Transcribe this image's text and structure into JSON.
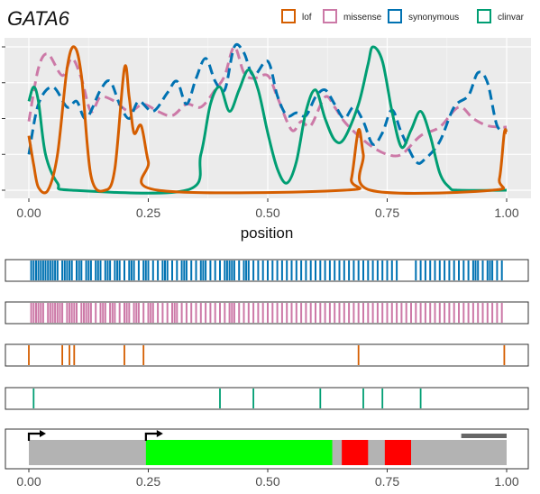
{
  "chart_data": [
    {
      "type": "line",
      "title": "GATA6",
      "xlabel": "position",
      "ylabel": "",
      "xlim": [
        0,
        1
      ],
      "ylim": [
        0,
        1
      ],
      "x_ticks": [
        "0.00",
        "0.25",
        "0.50",
        "0.75",
        "1.00"
      ],
      "grid": true,
      "legend_position": "top-right",
      "series": [
        {
          "name": "lof",
          "color": "#D55E00",
          "style": "solid",
          "points": [
            [
              0.0,
              0.38
            ],
            [
              0.01,
              0.18
            ],
            [
              0.02,
              0.02
            ],
            [
              0.04,
              0.0
            ],
            [
              0.06,
              0.25
            ],
            [
              0.08,
              0.85
            ],
            [
              0.095,
              1.0
            ],
            [
              0.11,
              0.8
            ],
            [
              0.13,
              0.1
            ],
            [
              0.16,
              0.0
            ],
            [
              0.18,
              0.15
            ],
            [
              0.2,
              0.85
            ],
            [
              0.21,
              0.65
            ],
            [
              0.22,
              0.4
            ],
            [
              0.235,
              0.45
            ],
            [
              0.25,
              0.2
            ],
            [
              0.27,
              0.0
            ],
            [
              0.66,
              0.0
            ],
            [
              0.675,
              0.08
            ],
            [
              0.69,
              0.42
            ],
            [
              0.7,
              0.25
            ],
            [
              0.715,
              0.0
            ],
            [
              0.97,
              0.0
            ],
            [
              0.985,
              0.08
            ],
            [
              0.995,
              0.4
            ],
            [
              1.0,
              0.4
            ]
          ]
        },
        {
          "name": "missense",
          "color": "#CC79A7",
          "style": "dashed",
          "points": [
            [
              0.0,
              0.48
            ],
            [
              0.02,
              0.85
            ],
            [
              0.04,
              0.95
            ],
            [
              0.07,
              0.8
            ],
            [
              0.09,
              0.92
            ],
            [
              0.11,
              0.78
            ],
            [
              0.13,
              0.55
            ],
            [
              0.15,
              0.65
            ],
            [
              0.18,
              0.62
            ],
            [
              0.21,
              0.55
            ],
            [
              0.24,
              0.6
            ],
            [
              0.27,
              0.55
            ],
            [
              0.3,
              0.52
            ],
            [
              0.33,
              0.6
            ],
            [
              0.36,
              0.58
            ],
            [
              0.39,
              0.7
            ],
            [
              0.41,
              0.8
            ],
            [
              0.43,
              1.0
            ],
            [
              0.45,
              0.82
            ],
            [
              0.47,
              0.78
            ],
            [
              0.5,
              0.8
            ],
            [
              0.52,
              0.65
            ],
            [
              0.55,
              0.42
            ],
            [
              0.57,
              0.48
            ],
            [
              0.59,
              0.45
            ],
            [
              0.62,
              0.65
            ],
            [
              0.64,
              0.58
            ],
            [
              0.66,
              0.48
            ],
            [
              0.69,
              0.38
            ],
            [
              0.72,
              0.3
            ],
            [
              0.75,
              0.25
            ],
            [
              0.78,
              0.25
            ],
            [
              0.82,
              0.38
            ],
            [
              0.86,
              0.44
            ],
            [
              0.9,
              0.58
            ],
            [
              0.93,
              0.5
            ],
            [
              0.96,
              0.45
            ],
            [
              0.99,
              0.44
            ],
            [
              1.0,
              0.44
            ]
          ]
        },
        {
          "name": "synonymous",
          "color": "#0072B2",
          "style": "dashed",
          "points": [
            [
              0.0,
              0.25
            ],
            [
              0.02,
              0.6
            ],
            [
              0.05,
              0.72
            ],
            [
              0.08,
              0.58
            ],
            [
              0.1,
              0.62
            ],
            [
              0.12,
              0.5
            ],
            [
              0.15,
              0.7
            ],
            [
              0.17,
              0.76
            ],
            [
              0.19,
              0.6
            ],
            [
              0.21,
              0.5
            ],
            [
              0.23,
              0.62
            ],
            [
              0.26,
              0.55
            ],
            [
              0.29,
              0.68
            ],
            [
              0.31,
              0.76
            ],
            [
              0.33,
              0.6
            ],
            [
              0.35,
              0.78
            ],
            [
              0.37,
              0.92
            ],
            [
              0.39,
              0.76
            ],
            [
              0.41,
              0.7
            ],
            [
              0.43,
              1.0
            ],
            [
              0.45,
              0.96
            ],
            [
              0.47,
              0.8
            ],
            [
              0.5,
              0.9
            ],
            [
              0.52,
              0.66
            ],
            [
              0.54,
              0.52
            ],
            [
              0.56,
              0.54
            ],
            [
              0.58,
              0.52
            ],
            [
              0.6,
              0.65
            ],
            [
              0.62,
              0.7
            ],
            [
              0.64,
              0.6
            ],
            [
              0.66,
              0.5
            ],
            [
              0.68,
              0.58
            ],
            [
              0.7,
              0.48
            ],
            [
              0.72,
              0.32
            ],
            [
              0.74,
              0.4
            ],
            [
              0.76,
              0.56
            ],
            [
              0.78,
              0.4
            ],
            [
              0.81,
              0.2
            ],
            [
              0.83,
              0.22
            ],
            [
              0.86,
              0.34
            ],
            [
              0.89,
              0.58
            ],
            [
              0.92,
              0.66
            ],
            [
              0.94,
              0.82
            ],
            [
              0.96,
              0.75
            ],
            [
              0.98,
              0.45
            ],
            [
              1.0,
              0.42
            ]
          ]
        },
        {
          "name": "clinvar",
          "color": "#009E73",
          "style": "solid",
          "points": [
            [
              0.0,
              0.62
            ],
            [
              0.01,
              0.72
            ],
            [
              0.02,
              0.62
            ],
            [
              0.035,
              0.25
            ],
            [
              0.06,
              0.05
            ],
            [
              0.09,
              0.0
            ],
            [
              0.33,
              0.0
            ],
            [
              0.36,
              0.25
            ],
            [
              0.38,
              0.6
            ],
            [
              0.4,
              0.72
            ],
            [
              0.42,
              0.55
            ],
            [
              0.44,
              0.7
            ],
            [
              0.46,
              0.84
            ],
            [
              0.48,
              0.7
            ],
            [
              0.5,
              0.4
            ],
            [
              0.52,
              0.15
            ],
            [
              0.54,
              0.05
            ],
            [
              0.56,
              0.2
            ],
            [
              0.58,
              0.55
            ],
            [
              0.6,
              0.7
            ],
            [
              0.62,
              0.5
            ],
            [
              0.64,
              0.35
            ],
            [
              0.66,
              0.36
            ],
            [
              0.69,
              0.6
            ],
            [
              0.71,
              0.88
            ],
            [
              0.72,
              1.0
            ],
            [
              0.74,
              0.9
            ],
            [
              0.76,
              0.55
            ],
            [
              0.78,
              0.3
            ],
            [
              0.8,
              0.42
            ],
            [
              0.82,
              0.55
            ],
            [
              0.84,
              0.38
            ],
            [
              0.86,
              0.12
            ],
            [
              0.88,
              0.02
            ],
            [
              0.9,
              0.0
            ],
            [
              1.0,
              0.0
            ]
          ]
        }
      ]
    },
    {
      "type": "rug",
      "series": [
        {
          "name": "synonymous",
          "color": "#0072B2",
          "positions": [
            0.005,
            0.01,
            0.015,
            0.02,
            0.025,
            0.03,
            0.035,
            0.04,
            0.045,
            0.05,
            0.055,
            0.06,
            0.07,
            0.075,
            0.08,
            0.085,
            0.09,
            0.1,
            0.105,
            0.11,
            0.12,
            0.125,
            0.13,
            0.14,
            0.145,
            0.15,
            0.16,
            0.165,
            0.17,
            0.18,
            0.185,
            0.19,
            0.2,
            0.21,
            0.215,
            0.22,
            0.23,
            0.24,
            0.245,
            0.25,
            0.26,
            0.27,
            0.28,
            0.285,
            0.29,
            0.3,
            0.31,
            0.32,
            0.325,
            0.33,
            0.34,
            0.35,
            0.36,
            0.365,
            0.37,
            0.38,
            0.39,
            0.4,
            0.41,
            0.415,
            0.42,
            0.425,
            0.43,
            0.44,
            0.45,
            0.455,
            0.46,
            0.47,
            0.48,
            0.49,
            0.5,
            0.51,
            0.52,
            0.53,
            0.54,
            0.55,
            0.56,
            0.57,
            0.58,
            0.59,
            0.6,
            0.61,
            0.62,
            0.63,
            0.64,
            0.65,
            0.66,
            0.67,
            0.68,
            0.69,
            0.7,
            0.71,
            0.72,
            0.73,
            0.74,
            0.75,
            0.76,
            0.77,
            0.81,
            0.82,
            0.83,
            0.84,
            0.85,
            0.86,
            0.87,
            0.88,
            0.89,
            0.9,
            0.91,
            0.92,
            0.93,
            0.935,
            0.94,
            0.95,
            0.96,
            0.965,
            0.97,
            0.98,
            0.99
          ]
        },
        {
          "name": "missense",
          "color": "#CC79A7",
          "positions": [
            0.005,
            0.01,
            0.015,
            0.02,
            0.025,
            0.03,
            0.04,
            0.045,
            0.05,
            0.055,
            0.06,
            0.065,
            0.07,
            0.08,
            0.085,
            0.09,
            0.095,
            0.1,
            0.11,
            0.115,
            0.12,
            0.125,
            0.13,
            0.14,
            0.15,
            0.155,
            0.16,
            0.17,
            0.175,
            0.18,
            0.19,
            0.2,
            0.205,
            0.21,
            0.22,
            0.225,
            0.23,
            0.24,
            0.25,
            0.255,
            0.26,
            0.27,
            0.28,
            0.29,
            0.3,
            0.305,
            0.31,
            0.32,
            0.33,
            0.34,
            0.35,
            0.36,
            0.37,
            0.38,
            0.39,
            0.4,
            0.41,
            0.42,
            0.425,
            0.43,
            0.44,
            0.45,
            0.46,
            0.47,
            0.48,
            0.49,
            0.5,
            0.51,
            0.52,
            0.53,
            0.54,
            0.55,
            0.56,
            0.57,
            0.58,
            0.59,
            0.6,
            0.61,
            0.62,
            0.63,
            0.64,
            0.65,
            0.66,
            0.67,
            0.68,
            0.69,
            0.7,
            0.71,
            0.72,
            0.73,
            0.74,
            0.75,
            0.76,
            0.77,
            0.78,
            0.79,
            0.8,
            0.81,
            0.82,
            0.83,
            0.84,
            0.85,
            0.86,
            0.87,
            0.88,
            0.89,
            0.9,
            0.91,
            0.92,
            0.93,
            0.94,
            0.95,
            0.96,
            0.97,
            0.98,
            0.99
          ]
        },
        {
          "name": "lof",
          "color": "#D55E00",
          "positions": [
            0.0,
            0.07,
            0.085,
            0.095,
            0.2,
            0.24,
            0.69,
            0.995
          ]
        },
        {
          "name": "clinvar",
          "color": "#009E73",
          "positions": [
            0.01,
            0.4,
            0.47,
            0.61,
            0.7,
            0.74,
            0.82
          ]
        }
      ]
    },
    {
      "type": "gene-track",
      "x_ticks": [
        "0.00",
        "0.25",
        "0.50",
        "0.75",
        "1.00"
      ],
      "backbone_color": "#B3B3B3",
      "regions": [
        {
          "start": 0.245,
          "end": 0.635,
          "color": "#00FF00"
        },
        {
          "start": 0.655,
          "end": 0.71,
          "color": "#FF0000"
        },
        {
          "start": 0.745,
          "end": 0.8,
          "color": "#FF0000"
        }
      ],
      "top_bar": {
        "start": 0.905,
        "end": 1.0,
        "color": "#666666"
      },
      "tss_arrows": [
        0.0,
        0.245
      ]
    }
  ]
}
